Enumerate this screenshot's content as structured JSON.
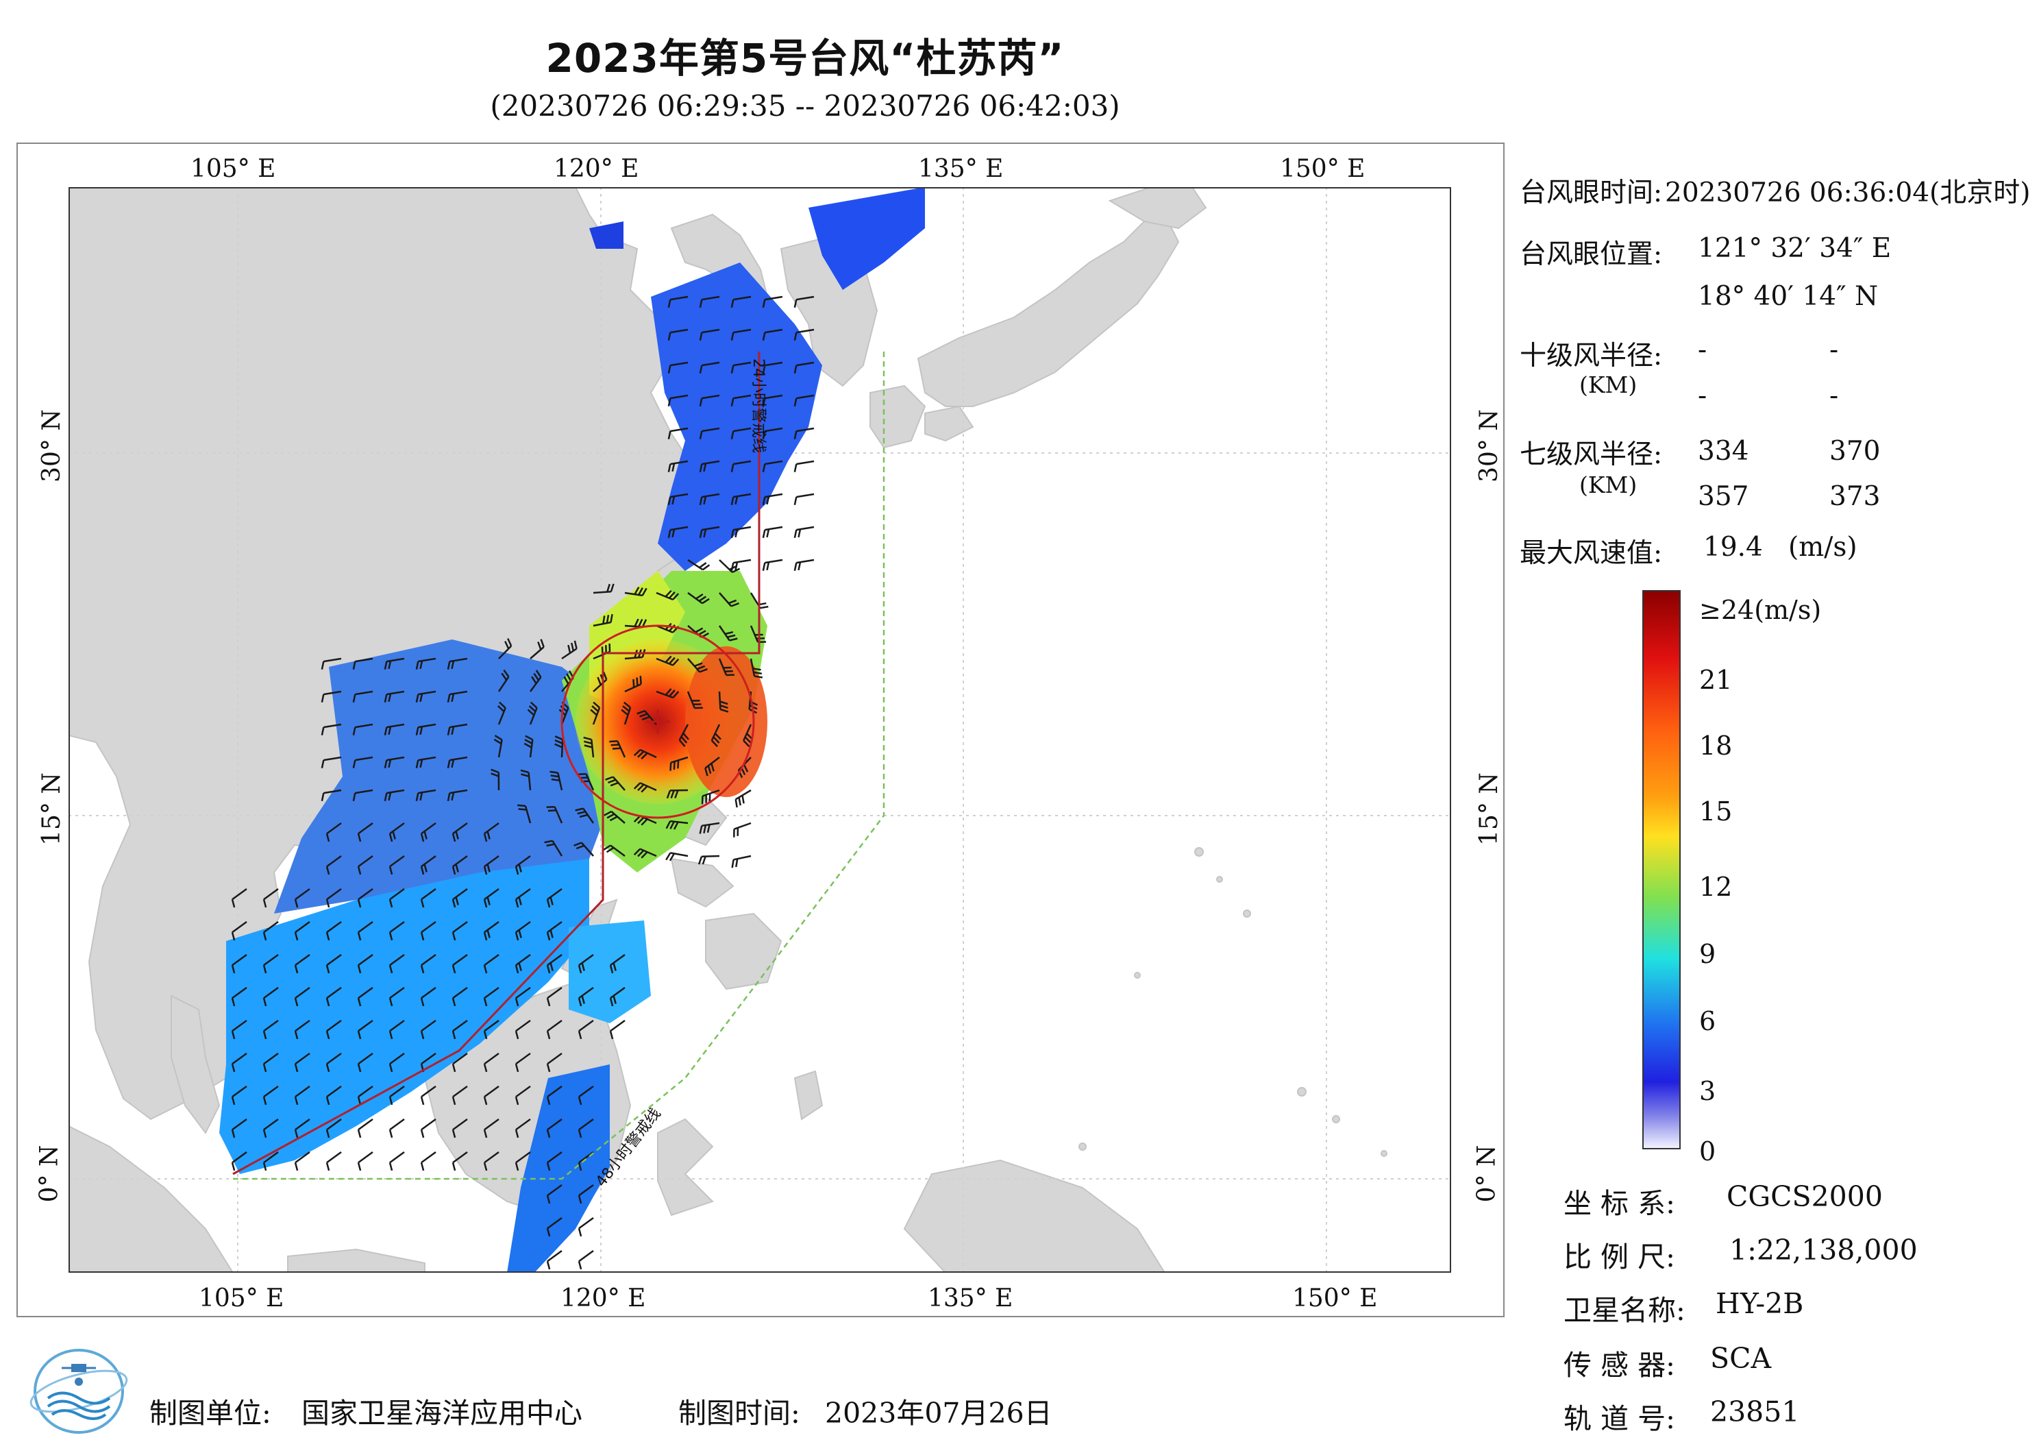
{
  "header": {
    "title": "2023年第5号台风“杜苏芮”",
    "subtitle": "(20230726 06:29:35 -- 20230726 06:42:03)"
  },
  "map": {
    "lon_ticks_top": [
      "105° E",
      "120° E",
      "135° E",
      "150° E"
    ],
    "lon_ticks_bottom": [
      "105° E",
      "120° E",
      "135° E",
      "150° E"
    ],
    "lat_ticks_left": [
      "30° N",
      "15° N",
      "0° N"
    ],
    "lat_ticks_right": [
      "30° N",
      "15° N",
      "0° N"
    ],
    "warning_24h_label": "24小时警戒线",
    "warning_48h_label": "48小时警戒线",
    "colors": {
      "land": "#d7d7d7",
      "sea": "#ffffff",
      "grid": "#d0d0d0",
      "warning_24h": "#b3202a",
      "warning_48h": "#7ac25a",
      "radius_circle": "#cc2020",
      "barb": "#1a1a1a"
    }
  },
  "info": {
    "eye_time_label": "台风眼时间:",
    "eye_time_value": "20230726 06:36:04(北京时)",
    "eye_pos_label": "台风眼位置:",
    "eye_lon": "121° 32′ 34″ E",
    "eye_lat": "18° 40′ 14″ N",
    "r10_label": "十级风半径:",
    "r10_unit": "(KM)",
    "r10_values": [
      "-",
      "-",
      "-",
      "-"
    ],
    "r7_label": "七级风半径:",
    "r7_unit": "(KM)",
    "r7_values": [
      "334",
      "370",
      "357",
      "373"
    ],
    "max_wind_label": "最大风速值:",
    "max_wind_value": "19.4",
    "max_wind_unit": "(m/s)"
  },
  "colorbar": {
    "labels": [
      "≥24(m/s)",
      "21",
      "18",
      "15",
      "12",
      "9",
      "6",
      "3",
      "0"
    ]
  },
  "meta": {
    "crs_label": "坐 标 系:",
    "crs_value": "CGCS2000",
    "scale_label": "比 例 尺:",
    "scale_value": "1:22,138,000",
    "satellite_label": "卫星名称:",
    "satellite_value": "HY-2B",
    "sensor_label": "传 感 器:",
    "sensor_value": "SCA",
    "orbit_label": "轨 道 号:",
    "orbit_value": "23851"
  },
  "footer": {
    "unit_label": "制图单位:",
    "unit_value": "国家卫星海洋应用中心",
    "date_label": "制图时间:",
    "date_value": "2023年07月26日"
  }
}
